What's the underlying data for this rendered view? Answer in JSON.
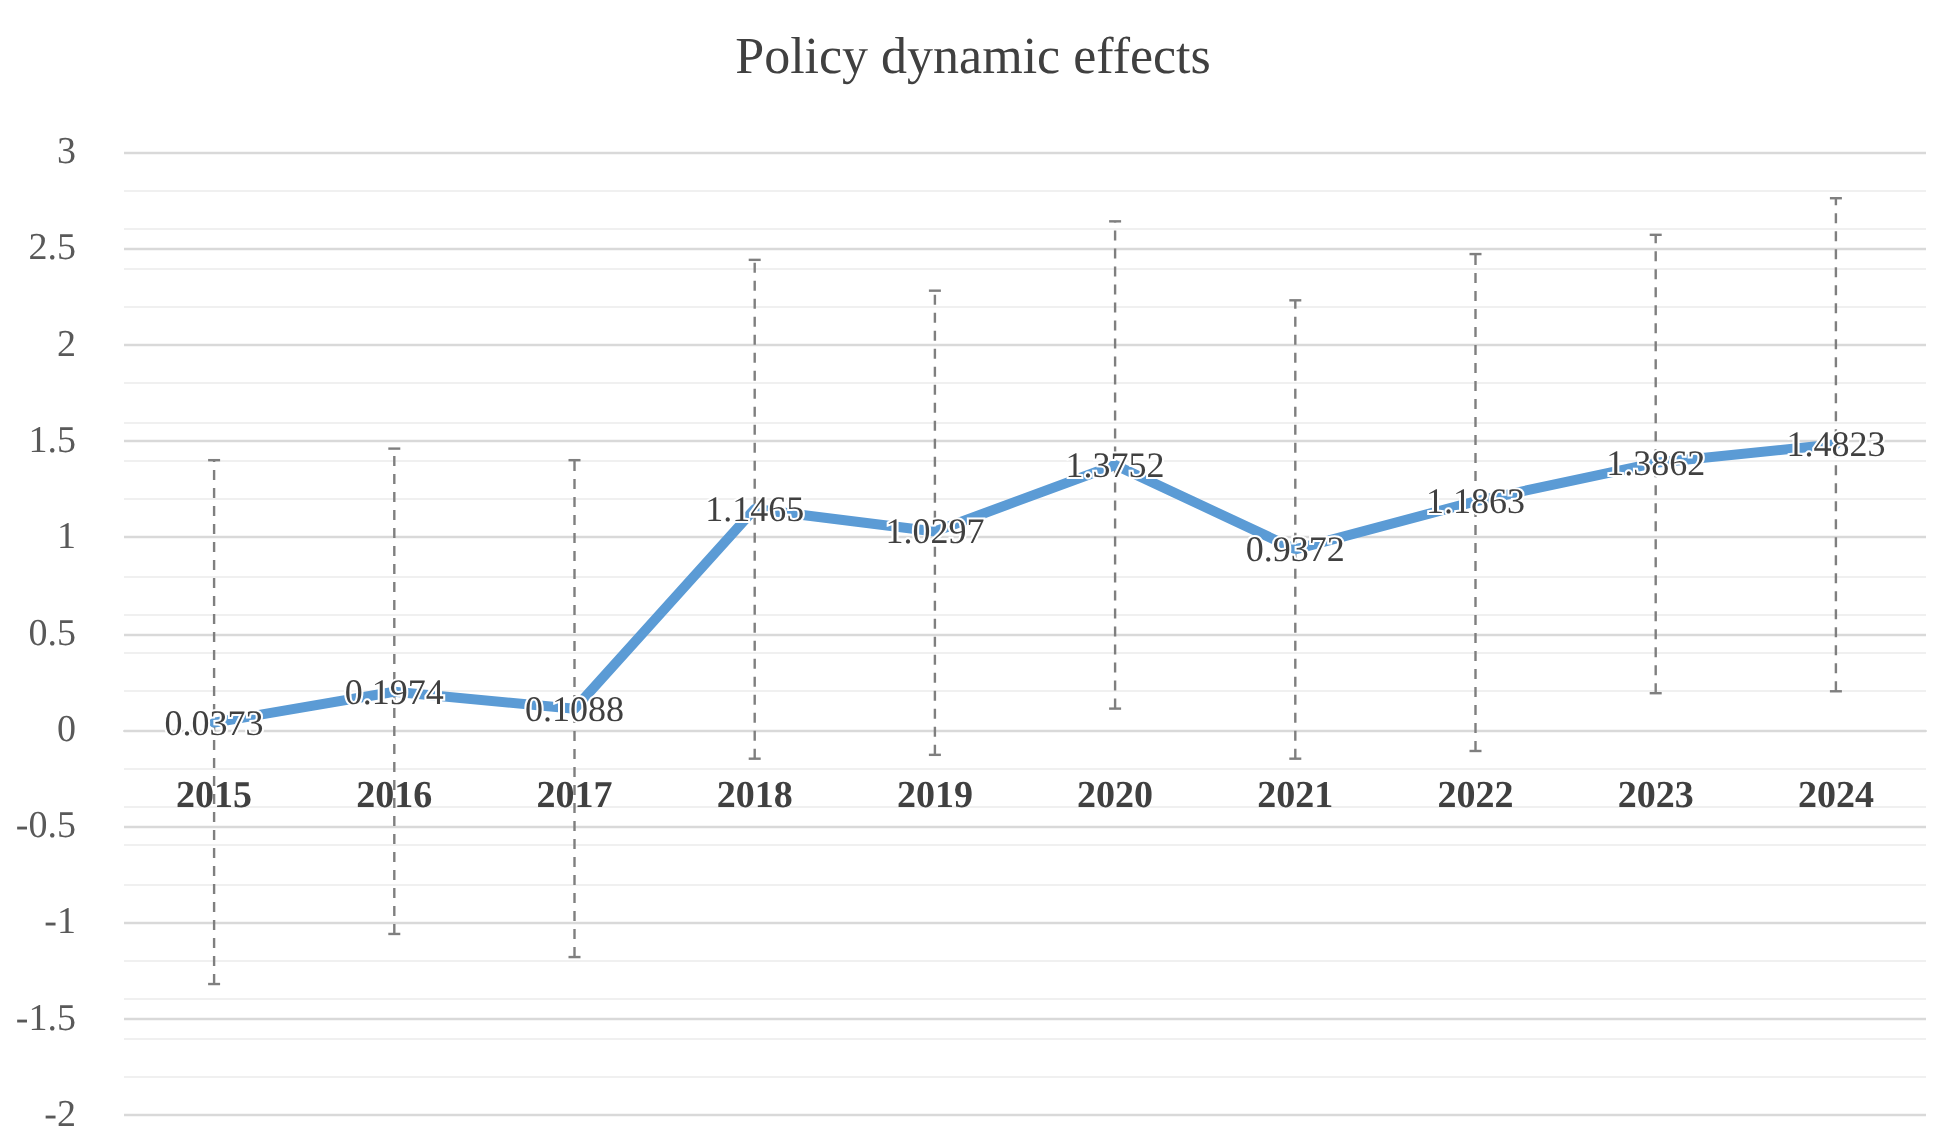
{
  "chart_data": {
    "type": "line",
    "title": "Policy dynamic effects",
    "categories": [
      "2015",
      "2016",
      "2017",
      "2018",
      "2019",
      "2020",
      "2021",
      "2022",
      "2023",
      "2024"
    ],
    "series": [
      {
        "color": "#5b9bd5",
        "values": [
          0.0373,
          0.1974,
          0.1088,
          1.1465,
          1.0297,
          1.3752,
          0.9372,
          1.1863,
          1.3862,
          1.4823
        ],
        "errors": [
          [
            -1.32,
            1.4
          ],
          [
            -1.06,
            1.46
          ],
          [
            -1.18,
            1.4
          ],
          [
            -0.15,
            2.44
          ],
          [
            -0.13,
            2.28
          ],
          [
            0.11,
            2.64
          ],
          [
            -0.15,
            2.23
          ],
          [
            -0.11,
            2.47
          ],
          [
            0.19,
            2.57
          ],
          [
            0.2,
            2.76
          ]
        ]
      }
    ],
    "ylim": [
      -2,
      3
    ],
    "yticks": [
      -2,
      -1.5,
      -1,
      -0.5,
      0,
      0.5,
      1,
      1.5,
      2,
      2.5,
      3
    ],
    "grid": "y",
    "marker": "none",
    "line_style": "solid",
    "data_labels": true
  }
}
